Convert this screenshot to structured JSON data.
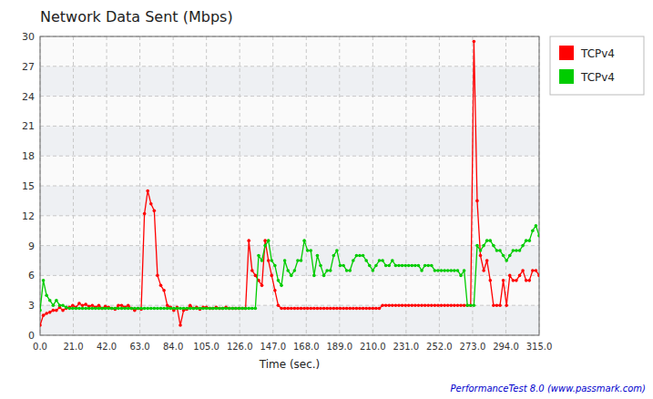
{
  "chart_data": {
    "type": "line",
    "title": "Network Data Sent (Mbps)",
    "x_label": "Time (sec.)",
    "annotations": [
      "PerformanceTest 8.0 (www.passmark.com)"
    ],
    "xlim": [
      0,
      315
    ],
    "ylim": [
      0,
      30
    ],
    "yticks": [
      0,
      3,
      6,
      9,
      12,
      15,
      18,
      21,
      24,
      27,
      30
    ],
    "xticks": [
      {
        "value": 0,
        "label": "0.0"
      },
      {
        "value": 21,
        "label": "21.0"
      },
      {
        "value": 42,
        "label": "42.0"
      },
      {
        "value": 63,
        "label": "63.0"
      },
      {
        "value": 84,
        "label": "84.0"
      },
      {
        "value": 105,
        "label": "105.0"
      },
      {
        "value": 126,
        "label": "126.0"
      },
      {
        "value": 147,
        "label": "147.0"
      },
      {
        "value": 168,
        "label": "168.0"
      },
      {
        "value": 189,
        "label": "189.0"
      },
      {
        "value": 210,
        "label": "210.0"
      },
      {
        "value": 231,
        "label": "231.0"
      },
      {
        "value": 252,
        "label": "252.0"
      },
      {
        "value": 273,
        "label": "273.0"
      },
      {
        "value": 294,
        "label": "294.0"
      },
      {
        "value": 315,
        "label": "315.0"
      }
    ],
    "grid": true,
    "legend": "right",
    "marker": "circle",
    "line_style": "solid",
    "x": [
      0,
      2.0588,
      4.1176,
      6.1765,
      8.2353,
      10.2941,
      12.3529,
      14.4118,
      16.4706,
      18.5294,
      20.5882,
      22.6471,
      24.7059,
      26.7647,
      28.8235,
      30.8824,
      32.9412,
      35,
      37.0588,
      39.1176,
      41.1765,
      43.2353,
      45.2941,
      47.3529,
      49.4118,
      51.4706,
      53.5294,
      55.5882,
      57.6471,
      59.7059,
      61.7647,
      63.8235,
      65.8824,
      67.9412,
      70,
      72.0588,
      74.1176,
      76.1765,
      78.2353,
      80.2941,
      82.3529,
      84.4118,
      86.4706,
      88.5294,
      90.5882,
      92.6471,
      94.7059,
      96.7647,
      98.8235,
      100.8824,
      102.9412,
      105,
      107.0588,
      109.1176,
      111.1765,
      113.2353,
      115.2941,
      117.3529,
      119.4118,
      121.4706,
      123.5294,
      125.5882,
      127.6471,
      129.7059,
      131.7647,
      133.8235,
      135.8824,
      137.9412,
      140,
      142.0588,
      144.1176,
      146.1765,
      148.2353,
      150.2941,
      152.3529,
      154.4118,
      156.4706,
      158.5294,
      160.5882,
      162.6471,
      164.7059,
      166.7647,
      168.8235,
      170.8824,
      172.9412,
      175,
      177.0588,
      179.1176,
      181.1765,
      183.2353,
      185.2941,
      187.3529,
      189.4118,
      191.4706,
      193.5294,
      195.5882,
      197.6471,
      199.7059,
      201.7647,
      203.8235,
      205.8824,
      207.9412,
      210,
      212.0588,
      214.1176,
      216.1765,
      218.2353,
      220.2941,
      222.3529,
      224.4118,
      226.4706,
      228.5294,
      230.5882,
      232.6471,
      234.7059,
      236.7647,
      238.8235,
      240.8824,
      242.9412,
      245,
      247.0588,
      249.1176,
      251.1765,
      253.2353,
      255.2941,
      257.3529,
      259.4118,
      261.4706,
      263.5294,
      265.5882,
      267.6471,
      269.7059,
      271.7647,
      273.8235,
      275.8824,
      277.9412,
      280,
      282.0588,
      284.1176,
      286.1765,
      288.2353,
      290.2941,
      292.3529,
      294.4118,
      296.4706,
      298.5294,
      300.5882,
      302.6471,
      304.7059,
      306.7647,
      308.8235,
      310.8824,
      312.9412,
      315
    ],
    "series": [
      {
        "name": "TCPv4",
        "color": "#ff0000",
        "values": [
          1.0,
          2.0,
          2.2,
          2.3,
          2.5,
          2.5,
          2.8,
          2.5,
          2.7,
          2.8,
          3.0,
          2.8,
          3.2,
          3.0,
          3.1,
          2.9,
          3.0,
          2.8,
          3.0,
          2.7,
          2.9,
          2.8,
          2.7,
          2.6,
          3.0,
          3.0,
          2.8,
          3.0,
          2.7,
          2.5,
          2.7,
          2.6,
          12.2,
          14.5,
          13.2,
          12.5,
          6.0,
          5.0,
          4.5,
          3.0,
          2.8,
          2.5,
          2.8,
          1.0,
          2.5,
          2.6,
          3.0,
          2.7,
          2.8,
          2.6,
          2.8,
          2.8,
          2.7,
          2.7,
          2.8,
          2.7,
          2.7,
          2.8,
          2.7,
          2.7,
          2.7,
          2.7,
          2.7,
          2.7,
          9.5,
          6.5,
          6.0,
          5.5,
          5.0,
          9.5,
          7.5,
          6.0,
          4.5,
          3.0,
          2.7,
          2.7,
          2.7,
          2.7,
          2.7,
          2.7,
          2.7,
          2.7,
          2.7,
          2.7,
          2.7,
          2.7,
          2.7,
          2.7,
          2.7,
          2.7,
          2.7,
          2.7,
          2.7,
          2.7,
          2.7,
          2.7,
          2.7,
          2.7,
          2.7,
          2.7,
          2.7,
          2.7,
          2.7,
          2.7,
          2.7,
          3.0,
          3.0,
          3.0,
          3.0,
          3.0,
          3.0,
          3.0,
          3.0,
          3.0,
          3.0,
          3.0,
          3.0,
          3.0,
          3.0,
          3.0,
          3.0,
          3.0,
          3.0,
          3.0,
          3.0,
          3.0,
          3.0,
          3.0,
          3.0,
          3.0,
          3.0,
          3.0,
          3.0,
          29.5,
          13.5,
          8.0,
          6.5,
          7.5,
          5.5,
          3.0,
          3.0,
          3.0,
          5.5,
          3.0,
          6.0,
          5.5,
          5.5,
          6.0,
          6.5,
          5.5,
          5.5,
          6.5,
          6.5,
          6.0
        ]
      },
      {
        "name": "TCPv4",
        "color": "#00cc00",
        "values": [
          2.5,
          5.5,
          4.0,
          3.5,
          3.0,
          3.5,
          3.0,
          3.0,
          2.8,
          2.7,
          2.7,
          2.7,
          2.7,
          2.7,
          2.7,
          2.7,
          2.7,
          2.7,
          2.7,
          2.7,
          2.7,
          2.7,
          2.7,
          2.7,
          2.7,
          2.7,
          2.7,
          2.7,
          2.7,
          2.7,
          2.7,
          2.7,
          2.7,
          2.7,
          2.7,
          2.7,
          2.7,
          2.7,
          2.7,
          2.7,
          2.7,
          2.7,
          2.7,
          2.7,
          2.7,
          2.7,
          2.7,
          2.7,
          2.7,
          2.7,
          2.7,
          2.7,
          2.7,
          2.7,
          2.7,
          2.7,
          2.7,
          2.7,
          2.7,
          2.7,
          2.7,
          2.7,
          2.7,
          2.7,
          2.7,
          2.7,
          2.7,
          8.0,
          7.5,
          9.0,
          9.5,
          7.5,
          7.0,
          5.5,
          5.0,
          7.5,
          6.5,
          6.0,
          6.5,
          7.5,
          7.5,
          9.5,
          8.5,
          8.5,
          6.0,
          8.0,
          7.0,
          6.0,
          6.5,
          6.5,
          8.0,
          8.5,
          7.0,
          7.0,
          6.5,
          6.5,
          7.5,
          8.0,
          8.0,
          8.0,
          7.5,
          7.0,
          6.5,
          7.0,
          7.5,
          7.5,
          7.0,
          7.0,
          7.5,
          7.0,
          7.0,
          7.0,
          7.0,
          7.0,
          7.0,
          7.0,
          7.0,
          6.5,
          7.0,
          7.0,
          7.0,
          6.5,
          6.5,
          6.5,
          6.5,
          6.5,
          6.5,
          6.5,
          6.5,
          6.0,
          6.5,
          3.0,
          3.0,
          3.0,
          9.0,
          8.5,
          9.0,
          9.5,
          9.5,
          9.0,
          8.5,
          8.5,
          8.0,
          7.5,
          8.0,
          8.5,
          8.5,
          8.5,
          9.0,
          9.5,
          9.5,
          10.5,
          11.0,
          10.0
        ]
      }
    ]
  }
}
